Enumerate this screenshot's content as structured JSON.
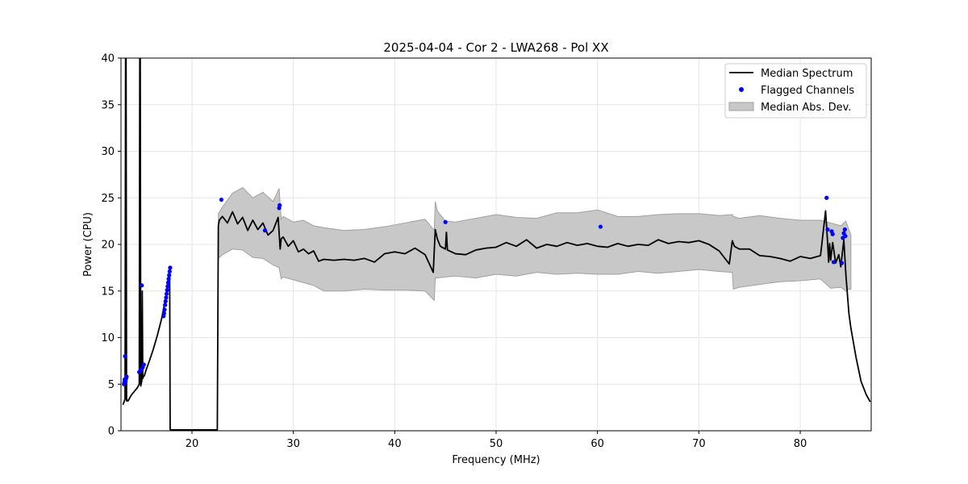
{
  "chart_data": {
    "type": "line",
    "title": "2025-04-04 - Cor 2 - LWA268 - Pol XX",
    "xlabel": "Frequency (MHz)",
    "ylabel": "Power (CPU)",
    "xlim": [
      13.0,
      87.0
    ],
    "ylim": [
      0,
      40
    ],
    "x_ticks": [
      20,
      30,
      40,
      50,
      60,
      70,
      80
    ],
    "y_ticks": [
      0,
      5,
      10,
      15,
      20,
      25,
      30,
      35,
      40
    ],
    "grid": true,
    "legend_position": "top-right",
    "legend": [
      "Median Spectrum",
      "Flagged Channels",
      "Median Abs. Dev."
    ],
    "colors": {
      "median": "#000000",
      "flagged": "#0000ff",
      "band": "#c8c8c8",
      "band_edge": "#a0a0a0"
    },
    "series": [
      {
        "name": "Median Spectrum",
        "kind": "line",
        "x": [
          13.2,
          13.4,
          13.45,
          13.5,
          13.55,
          13.6,
          13.7,
          13.8,
          14.0,
          14.3,
          14.6,
          14.8,
          14.85,
          14.9,
          14.95,
          15.0,
          15.05,
          15.1,
          15.15,
          15.2,
          15.3,
          15.5,
          15.8,
          16.2,
          16.6,
          17.0,
          17.4,
          17.6,
          17.8,
          17.85,
          17.9,
          18.5,
          20.0,
          22.0,
          22.5,
          22.6,
          22.7,
          23.0,
          23.5,
          24.0,
          24.5,
          25.0,
          25.5,
          26.0,
          26.5,
          27.0,
          27.5,
          28.0,
          28.5,
          28.7,
          28.8,
          29.0,
          29.5,
          30.0,
          30.5,
          31.0,
          31.5,
          32.0,
          32.5,
          33.0,
          34.0,
          35.0,
          36.0,
          37.0,
          38.0,
          39.0,
          40.0,
          41.0,
          42.0,
          43.0,
          43.8,
          44.0,
          44.2,
          44.5,
          45.0,
          45.1,
          45.2,
          46.0,
          47.0,
          48.0,
          49.0,
          50.0,
          51.0,
          52.0,
          53.0,
          54.0,
          55.0,
          56.0,
          57.0,
          58.0,
          59.0,
          60.0,
          61.0,
          62.0,
          63.0,
          64.0,
          65.0,
          66.0,
          67.0,
          68.0,
          69.0,
          70.0,
          71.0,
          72.0,
          73.0,
          73.3,
          73.5,
          74.0,
          75.0,
          76.0,
          77.0,
          78.0,
          79.0,
          80.0,
          81.0,
          82.0,
          82.5,
          82.7,
          82.8,
          82.9,
          83.0,
          83.2,
          83.5,
          83.8,
          84.0,
          84.3,
          84.5,
          84.8,
          85.0,
          85.5,
          86.0,
          86.5,
          86.9
        ],
        "values": [
          2.8,
          3.4,
          40,
          40,
          3.2,
          3.3,
          3.2,
          3.4,
          3.8,
          4.2,
          4.6,
          5.0,
          40,
          40,
          4.8,
          5.1,
          5.3,
          15.0,
          5.6,
          5.8,
          5.9,
          6.6,
          7.5,
          8.8,
          10.3,
          12.0,
          14.2,
          15.5,
          17.4,
          0.1,
          0.1,
          0.1,
          0.1,
          0.1,
          0.1,
          22.0,
          22.6,
          23.0,
          22.3,
          23.5,
          22.2,
          22.9,
          21.5,
          22.6,
          21.6,
          22.3,
          21.0,
          21.5,
          22.9,
          19.5,
          20.6,
          20.8,
          19.8,
          20.4,
          19.2,
          19.5,
          19.0,
          19.3,
          18.2,
          18.4,
          18.3,
          18.4,
          18.3,
          18.5,
          18.1,
          19.0,
          19.2,
          19.0,
          19.6,
          18.9,
          17.0,
          21.6,
          20.6,
          19.8,
          19.5,
          21.3,
          19.4,
          19.0,
          18.9,
          19.4,
          19.6,
          19.7,
          20.2,
          19.8,
          20.5,
          19.6,
          20.0,
          19.8,
          20.2,
          19.9,
          20.1,
          19.8,
          19.7,
          20.1,
          19.8,
          20.0,
          19.9,
          20.5,
          20.1,
          20.3,
          20.2,
          20.4,
          20.0,
          19.3,
          17.9,
          20.4,
          19.8,
          19.5,
          19.5,
          18.8,
          18.7,
          18.5,
          18.2,
          18.7,
          18.5,
          18.8,
          23.6,
          20.2,
          18.1,
          20.1,
          18.3,
          20.2,
          18.0,
          18.9,
          17.6,
          20.5,
          16.8,
          12.6,
          11.0,
          7.9,
          5.3,
          3.9,
          3.1
        ]
      },
      {
        "name": "Median Abs. Dev.",
        "kind": "band",
        "x": [
          22.6,
          23.0,
          24.0,
          25.0,
          26.0,
          27.0,
          28.0,
          28.6,
          28.8,
          29.0,
          30.0,
          31.0,
          32.0,
          33.0,
          35.0,
          37.0,
          39.0,
          41.0,
          43.0,
          43.9,
          44.0,
          44.2,
          45.0,
          46.0,
          48.0,
          50.0,
          52.0,
          54.0,
          56.0,
          58.0,
          60.0,
          62.0,
          64.0,
          66.0,
          68.0,
          70.0,
          72.0,
          73.3,
          73.4,
          74.0,
          76.0,
          78.0,
          80.0,
          82.0,
          83.0,
          84.0,
          84.5,
          84.8,
          85.0
        ],
        "lower": [
          18.5,
          18.9,
          19.5,
          19.4,
          18.6,
          18.5,
          17.8,
          17.5,
          16.3,
          16.5,
          16.2,
          15.9,
          15.6,
          15.0,
          15.0,
          15.2,
          15.1,
          15.1,
          15.0,
          14.0,
          16.4,
          16.4,
          16.5,
          16.6,
          16.4,
          16.8,
          16.6,
          17.0,
          16.8,
          16.9,
          16.8,
          16.8,
          17.1,
          16.9,
          17.1,
          17.3,
          17.1,
          17.0,
          15.2,
          15.4,
          15.7,
          16.0,
          16.1,
          16.3,
          15.3,
          15.4,
          15.0,
          15.2,
          15.2
        ],
        "upper": [
          23.3,
          24.0,
          25.5,
          26.1,
          25.0,
          25.6,
          24.6,
          26.0,
          22.7,
          23.0,
          22.4,
          22.6,
          22.0,
          21.8,
          21.5,
          21.6,
          21.9,
          22.3,
          22.7,
          21.5,
          24.6,
          23.6,
          22.5,
          22.4,
          22.8,
          23.2,
          22.9,
          22.8,
          23.4,
          23.4,
          23.7,
          23.0,
          23.0,
          23.2,
          23.3,
          23.3,
          23.1,
          23.2,
          23.0,
          22.8,
          23.1,
          22.8,
          22.6,
          22.6,
          22.3,
          22.0,
          22.5,
          21.6,
          21.0
        ]
      }
    ],
    "flagged": {
      "name": "Flagged Channels",
      "kind": "scatter",
      "x": [
        13.3,
        13.33,
        13.36,
        13.4,
        13.45,
        13.5,
        13.55,
        14.8,
        14.95,
        15.05,
        15.15,
        15.25,
        17.2,
        17.25,
        17.3,
        17.35,
        17.4,
        17.45,
        17.5,
        17.55,
        17.6,
        17.65,
        17.7,
        17.75,
        17.8,
        17.85,
        22.9,
        27.2,
        28.6,
        28.65,
        45.0,
        60.3,
        82.6,
        82.7,
        83.1,
        83.2,
        83.3,
        84.1,
        84.2,
        84.3,
        84.4,
        84.45
      ],
      "values": [
        5.0,
        5.2,
        5.5,
        8.0,
        5.3,
        5.6,
        5.8,
        6.3,
        6.5,
        15.6,
        6.8,
        7.1,
        12.3,
        12.6,
        13.0,
        13.5,
        13.9,
        14.3,
        14.7,
        15.1,
        15.5,
        15.9,
        16.3,
        16.7,
        17.1,
        17.5,
        24.8,
        21.5,
        23.9,
        24.2,
        22.4,
        21.9,
        25.0,
        21.6,
        21.4,
        21.1,
        18.1,
        18.0,
        20.7,
        21.2,
        21.6,
        20.9
      ]
    }
  }
}
